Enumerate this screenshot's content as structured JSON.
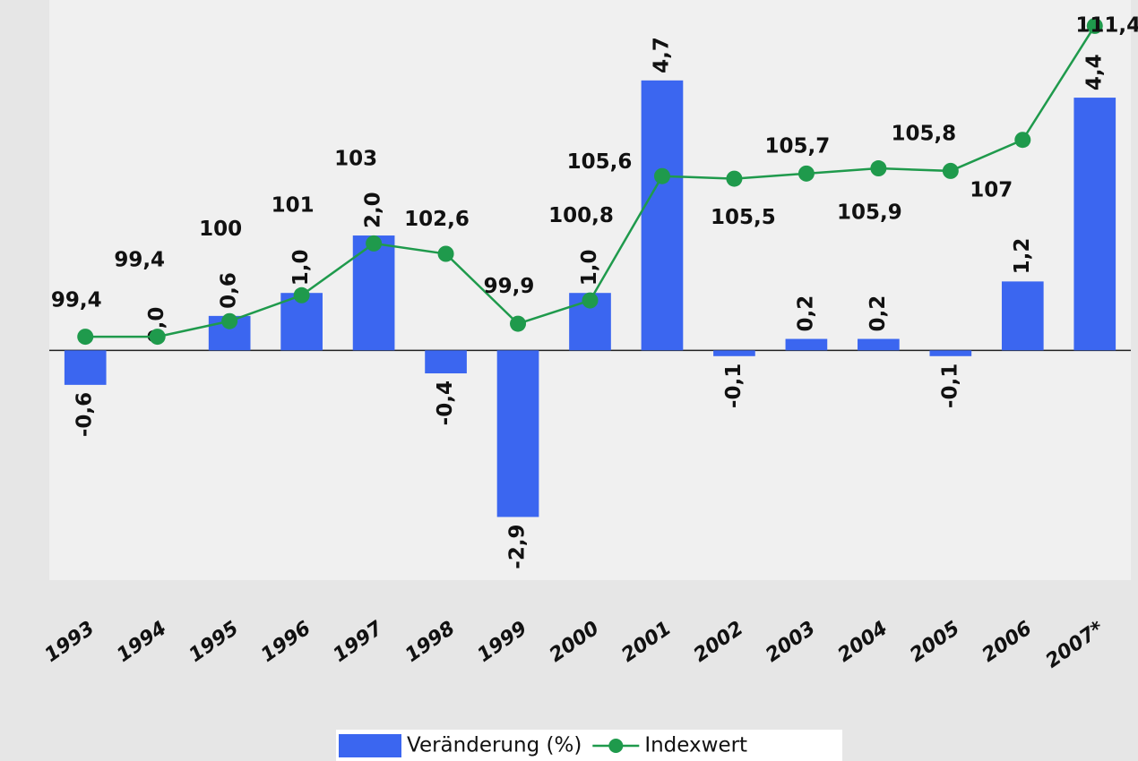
{
  "chart_data": {
    "type": "bar-line",
    "categories": [
      "1993",
      "1994",
      "1995",
      "1996",
      "1997",
      "1998",
      "1999",
      "2000",
      "2001",
      "2002",
      "2003",
      "2004",
      "2005",
      "2006",
      "2007*"
    ],
    "series": [
      {
        "name": "Veränderung (%)",
        "type": "bar",
        "color": "#3b66f0",
        "values": [
          -0.6,
          0,
          0.6,
          1.0,
          2.0,
          -0.4,
          -2.9,
          1.0,
          4.7,
          -0.1,
          0.2,
          0.2,
          -0.1,
          1.2,
          4.4
        ],
        "value_labels": [
          "-0,6",
          "0,0",
          "0,6",
          "1,0",
          "2,0",
          "-0,4",
          "-2,9",
          "1,0",
          "4,7",
          "-0,1",
          "0,2",
          "0,2",
          "-0,1",
          "1,2",
          "4,4"
        ]
      },
      {
        "name": "Indexwert",
        "type": "line",
        "axis": "y2",
        "color": "#1f9a4c",
        "values": [
          99.4,
          99.4,
          100,
          101,
          103,
          102.6,
          99.9,
          100.8,
          105.6,
          105.5,
          105.7,
          105.9,
          105.8,
          107,
          111.4
        ],
        "value_labels": [
          "99,4",
          "99,4",
          "100",
          "101",
          "103",
          "102,6",
          "99,9",
          "100,8",
          "105,6",
          "105,5",
          "105,7",
          "105,9",
          "105,8",
          "107",
          "111,4"
        ]
      }
    ],
    "ylim": [
      -4,
      6.1
    ],
    "y2lim": [
      90,
      112.4
    ],
    "legend": "bottom"
  }
}
